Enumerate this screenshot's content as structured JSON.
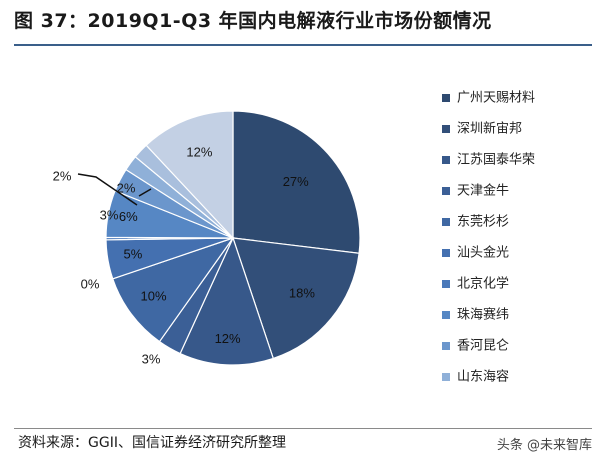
{
  "title": "图 37：2019Q1-Q3 年国内电解液行业市场份额情况",
  "source": "资料来源：GGII、国信证券经济研究所整理",
  "watermark": "头条 @未来智库",
  "chart_data": {
    "type": "pie",
    "title": "",
    "legend_position": "right",
    "series": [
      {
        "name": "广州天赐材料",
        "value": 27,
        "label": "27%",
        "color": "#2e4a70"
      },
      {
        "name": "深圳新宙邦",
        "value": 18,
        "label": "18%",
        "color": "#324f79"
      },
      {
        "name": "江苏国泰华荣",
        "value": 12,
        "label": "12%",
        "color": "#37588a"
      },
      {
        "name": "天津金牛",
        "value": 3,
        "label": "3%",
        "color": "#3b5f96"
      },
      {
        "name": "东莞杉杉",
        "value": 10,
        "label": "10%",
        "color": "#3f68a3"
      },
      {
        "name": "汕头金光",
        "value": 5,
        "label": "5%",
        "color": "#4470b0"
      },
      {
        "name": "北京化学",
        "value": 0.3,
        "label": "0%",
        "color": "#4a79ba"
      },
      {
        "name": "珠海赛纬",
        "value": 6,
        "label": "6%",
        "color": "#5687c4"
      },
      {
        "name": "香河昆仑",
        "value": 3,
        "label": "3%",
        "color": "#6b96cc"
      },
      {
        "name": "山东海容",
        "value": 2,
        "label": "2%",
        "color": "#8fb0d8"
      },
      {
        "name": "",
        "value": 2,
        "label": "2%",
        "color": "#a9bfdd"
      },
      {
        "name": "",
        "value": 12,
        "label": "12%",
        "color": "#c3d0e4"
      }
    ]
  }
}
